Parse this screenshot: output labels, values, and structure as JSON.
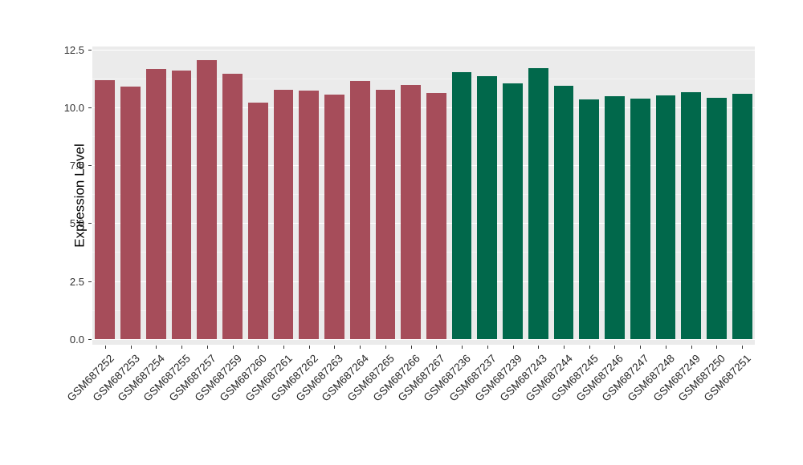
{
  "chart_data": {
    "type": "bar",
    "title": "",
    "xlabel": "",
    "ylabel": "Expression Level",
    "ylim": [
      0,
      12.5
    ],
    "yticks": [
      0.0,
      2.5,
      5.0,
      7.5,
      10.0,
      12.5
    ],
    "ytick_labels": [
      "0.0",
      "2.5",
      "5.0",
      "7.5",
      "10.0",
      "12.5"
    ],
    "minor_yticks": [
      1.25,
      3.75,
      6.25,
      8.75,
      11.25
    ],
    "grid": "on",
    "legend": "none",
    "categories": [
      "GSM687252",
      "GSM687253",
      "GSM687254",
      "GSM687255",
      "GSM687257",
      "GSM687259",
      "GSM687260",
      "GSM687261",
      "GSM687262",
      "GSM687263",
      "GSM687264",
      "GSM687265",
      "GSM687266",
      "GSM687267",
      "GSM687236",
      "GSM687237",
      "GSM687239",
      "GSM687243",
      "GSM687244",
      "GSM687245",
      "GSM687246",
      "GSM687247",
      "GSM687248",
      "GSM687249",
      "GSM687250",
      "GSM687251"
    ],
    "values": [
      11.18,
      10.9,
      11.66,
      11.59,
      12.05,
      11.45,
      10.21,
      10.76,
      10.73,
      10.55,
      11.14,
      10.76,
      10.98,
      10.62,
      11.52,
      11.35,
      11.04,
      11.68,
      10.93,
      10.35,
      10.48,
      10.38,
      10.52,
      10.64,
      10.42,
      10.6
    ],
    "groups": [
      "red",
      "red",
      "red",
      "red",
      "red",
      "red",
      "red",
      "red",
      "red",
      "red",
      "red",
      "red",
      "red",
      "red",
      "green",
      "green",
      "green",
      "green",
      "green",
      "green",
      "green",
      "green",
      "green",
      "green",
      "green",
      "green"
    ],
    "palette": {
      "red": "#A64D5A",
      "green": "#01684B"
    }
  },
  "style": {
    "panel_background": "#EBEBEB",
    "gridline_color": "#FFFFFF",
    "background": "#FFFFFF",
    "tick_color": "#333333"
  }
}
